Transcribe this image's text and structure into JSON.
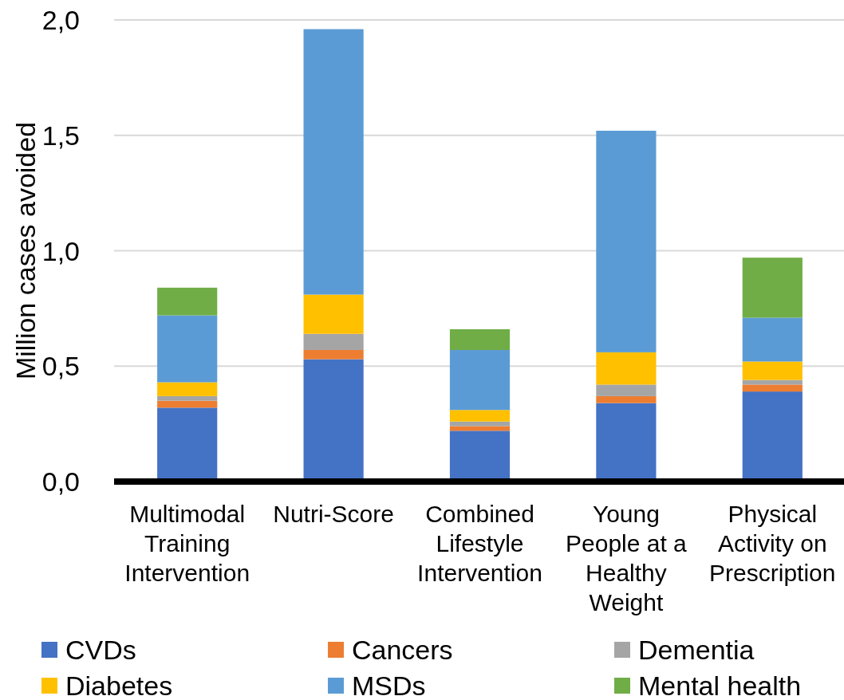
{
  "chart_data": {
    "type": "bar",
    "stacked": true,
    "ylabel": "Million cases avoided",
    "categories": [
      "Multimodal Training Intervention",
      "Nutri-Score",
      "Combined Lifestyle Intervention",
      "Young People at a Healthy Weight",
      "Physical Activity on Prescription"
    ],
    "series": [
      {
        "name": "CVDs",
        "color": "#4472c4",
        "values": [
          0.32,
          0.53,
          0.22,
          0.34,
          0.39
        ]
      },
      {
        "name": "Cancers",
        "color": "#ed7d31",
        "values": [
          0.03,
          0.04,
          0.02,
          0.03,
          0.03
        ]
      },
      {
        "name": "Dementia",
        "color": "#a5a5a5",
        "values": [
          0.02,
          0.07,
          0.02,
          0.05,
          0.02
        ]
      },
      {
        "name": "Diabetes",
        "color": "#ffc000",
        "values": [
          0.06,
          0.17,
          0.05,
          0.14,
          0.08
        ]
      },
      {
        "name": "MSDs",
        "color": "#5b9bd5",
        "values": [
          0.29,
          1.15,
          0.26,
          0.96,
          0.19
        ]
      },
      {
        "name": "Mental health",
        "color": "#70ad47",
        "values": [
          0.12,
          0,
          0.09,
          0,
          0.26
        ]
      }
    ],
    "ylim": [
      0,
      2
    ],
    "yticks": [
      {
        "value": 0,
        "label": "0,0"
      },
      {
        "value": 0.5,
        "label": "0,5"
      },
      {
        "value": 1,
        "label": "1,0"
      },
      {
        "value": 1.5,
        "label": "1,5"
      },
      {
        "value": 2,
        "label": "2,0"
      }
    ],
    "grid": "y",
    "legend": "bottom"
  }
}
